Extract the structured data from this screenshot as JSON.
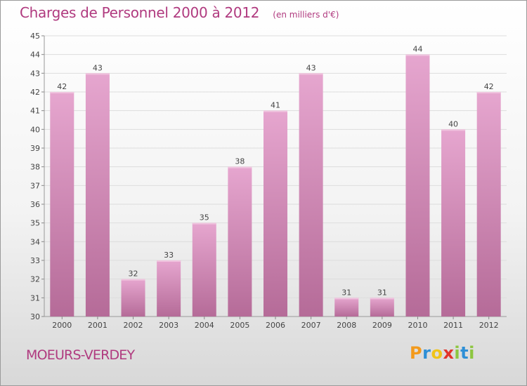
{
  "header": {
    "title": "Charges de Personnel 2000 à 2012",
    "subtitle": "(en milliers d'€)"
  },
  "footer": {
    "commune": "MOEURS-VERDEY",
    "brand_letters": [
      "P",
      "r",
      "o",
      "x",
      "i",
      "t",
      "i"
    ],
    "brand_colors": [
      "#f39a1c",
      "#2e8fd6",
      "#f0c419",
      "#e2342b",
      "#8cc63f",
      "#2e8fd6",
      "#8cc63f"
    ]
  },
  "colors": {
    "bar_light": "#e6a6cf",
    "bar_dark": "#b56b98",
    "text": "#444444",
    "grid": "#dddddd"
  },
  "chart_data": {
    "type": "bar",
    "categories": [
      "2000",
      "2001",
      "2002",
      "2003",
      "2004",
      "2005",
      "2006",
      "2007",
      "2008",
      "2009",
      "2010",
      "2011",
      "2012"
    ],
    "values": [
      42,
      43,
      32,
      33,
      35,
      38,
      41,
      43,
      31,
      31,
      44,
      40,
      42
    ],
    "data_labels": [
      "42",
      "43",
      "32",
      "33",
      "35",
      "38",
      "41",
      "43",
      "31",
      "31",
      "44",
      "40",
      "42"
    ],
    "yticks": [
      "30",
      "31",
      "32",
      "33",
      "34",
      "35",
      "36",
      "37",
      "38",
      "39",
      "40",
      "41",
      "42",
      "43",
      "44",
      "45"
    ],
    "ylim": [
      30,
      45
    ],
    "title": "Charges de Personnel 2000 à 2012",
    "xlabel": "",
    "ylabel": "",
    "grid": true,
    "legend": "none"
  }
}
